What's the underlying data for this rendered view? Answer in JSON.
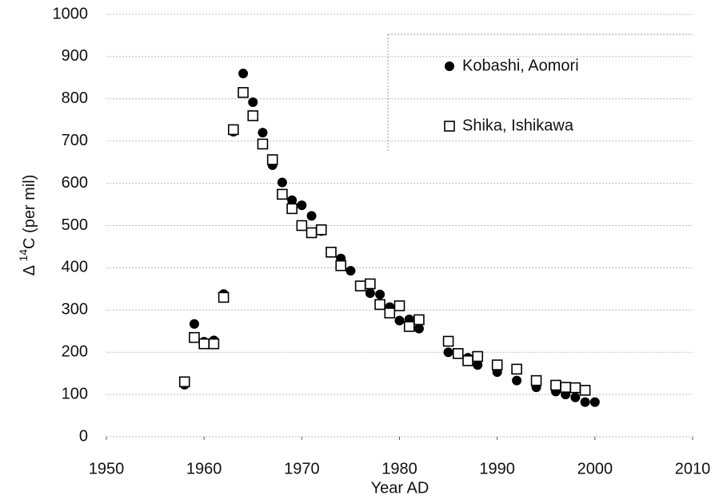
{
  "chart_data": {
    "type": "scatter",
    "y_label": {
      "prefix": "Δ ",
      "sup": "14",
      "rest": "C (per mil)"
    },
    "x_label": "Year AD",
    "xlim": [
      1950,
      2010
    ],
    "xticks": [
      1950,
      1960,
      1970,
      1980,
      1990,
      2000,
      2010
    ],
    "ylim": [
      0,
      1000
    ],
    "yticks": [
      0,
      100,
      200,
      300,
      400,
      500,
      600,
      700,
      800,
      900,
      1000
    ],
    "grid": true,
    "legend": "upper right",
    "series": [
      {
        "name": "Kobashi, Aomori",
        "color": "#000000",
        "marker": "circle",
        "x": [
          1958,
          1959,
          1960,
          1961,
          1962,
          1963,
          1964,
          1965,
          1966,
          1967,
          1968,
          1969,
          1970,
          1971,
          1972,
          1973,
          1974,
          1975,
          1976,
          1977,
          1978,
          1979,
          1980,
          1981,
          1982,
          1985,
          1986,
          1987,
          1988,
          1990,
          1992,
          1994,
          1996,
          1997,
          1998,
          1999,
          2000
        ],
        "values": [
          123,
          267,
          225,
          228,
          338,
          722,
          860,
          792,
          720,
          643,
          602,
          560,
          548,
          523,
          487,
          436,
          422,
          393,
          357,
          340,
          337,
          307,
          275,
          278,
          256,
          200,
          197,
          187,
          170,
          153,
          133,
          117,
          107,
          100,
          93,
          82,
          82
        ]
      },
      {
        "name": "Shika, Ishikawa",
        "color": "#000000",
        "marker": "square",
        "x": [
          1958,
          1959,
          1960,
          1961,
          1962,
          1963,
          1964,
          1965,
          1966,
          1967,
          1968,
          1969,
          1970,
          1971,
          1972,
          1973,
          1974,
          1976,
          1977,
          1978,
          1979,
          1980,
          1981,
          1982,
          1985,
          1986,
          1987,
          1988,
          1990,
          1992,
          1994,
          1996,
          1997,
          1998,
          1999
        ],
        "values": [
          130,
          235,
          220,
          220,
          330,
          727,
          815,
          760,
          693,
          656,
          574,
          540,
          500,
          483,
          490,
          437,
          405,
          357,
          362,
          313,
          293,
          310,
          261,
          277,
          226,
          197,
          180,
          190,
          170,
          160,
          133,
          122,
          117,
          116,
          110
        ]
      }
    ]
  }
}
